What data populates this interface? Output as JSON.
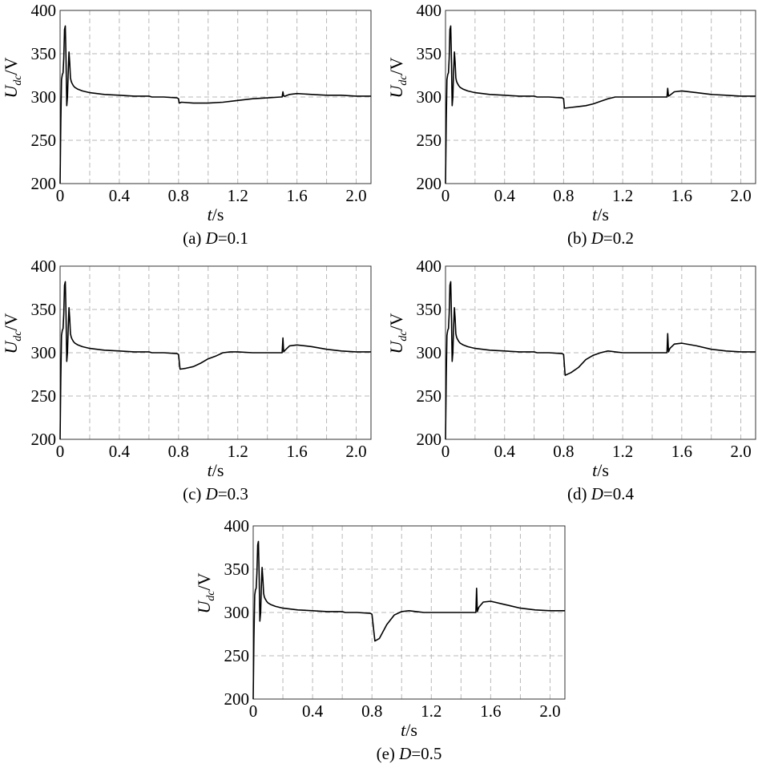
{
  "chart_data": [
    {
      "type": "line",
      "caption": {
        "prefix": "(a) ",
        "var": "D",
        "suffix": "=0.1"
      },
      "xlabel": {
        "var": "t",
        "unit": "/s"
      },
      "ylabel": {
        "base": "U",
        "sub": "dc",
        "unit": "/V"
      },
      "xlim": [
        0,
        2.1
      ],
      "ylim": [
        200,
        400
      ],
      "xticks": [
        "0",
        "0.4",
        "0.8",
        "1.2",
        "1.6",
        "2.0"
      ],
      "yticks": [
        "200",
        "250",
        "300",
        "350",
        "400"
      ],
      "grid": true,
      "series": [
        {
          "x": [
            0,
            0.005,
            0.01,
            0.015,
            0.02,
            0.025,
            0.03,
            0.035,
            0.04,
            0.045,
            0.05,
            0.055,
            0.06,
            0.065,
            0.07,
            0.075,
            0.08,
            0.09,
            0.1,
            0.12,
            0.15,
            0.2,
            0.3,
            0.4,
            0.5,
            0.6,
            0.62,
            0.7,
            0.79,
            0.8,
            0.805,
            0.82,
            0.9,
            1.0,
            1.1,
            1.2,
            1.3,
            1.4,
            1.49,
            1.5,
            1.505,
            1.51,
            1.52,
            1.55,
            1.6,
            1.7,
            1.8,
            1.9,
            2.0,
            2.1
          ],
          "y": [
            200,
            270,
            320,
            326,
            328,
            345,
            378,
            382,
            345,
            290,
            300,
            330,
            352,
            340,
            322,
            318,
            316,
            313,
            311,
            309,
            307,
            305,
            303,
            302,
            301,
            301,
            300,
            300,
            299,
            298,
            293,
            294,
            293,
            293,
            294,
            296,
            298,
            299,
            300,
            300,
            306,
            301,
            301,
            303,
            304,
            303,
            302,
            302,
            301,
            301
          ]
        }
      ]
    },
    {
      "type": "line",
      "caption": {
        "prefix": "(b) ",
        "var": "D",
        "suffix": "=0.2"
      },
      "xlabel": {
        "var": "t",
        "unit": "/s"
      },
      "ylabel": {
        "base": "U",
        "sub": "dc",
        "unit": "/V"
      },
      "xlim": [
        0,
        2.1
      ],
      "ylim": [
        200,
        400
      ],
      "xticks": [
        "0",
        "0.4",
        "0.8",
        "1.2",
        "1.6",
        "2.0"
      ],
      "yticks": [
        "200",
        "250",
        "300",
        "350",
        "400"
      ],
      "grid": true,
      "series": [
        {
          "x": [
            0,
            0.005,
            0.01,
            0.015,
            0.02,
            0.025,
            0.03,
            0.035,
            0.04,
            0.045,
            0.05,
            0.055,
            0.06,
            0.065,
            0.07,
            0.075,
            0.08,
            0.09,
            0.1,
            0.12,
            0.15,
            0.2,
            0.3,
            0.4,
            0.5,
            0.6,
            0.62,
            0.7,
            0.79,
            0.8,
            0.805,
            0.85,
            0.9,
            0.95,
            1.0,
            1.05,
            1.1,
            1.15,
            1.2,
            1.3,
            1.4,
            1.49,
            1.5,
            1.505,
            1.51,
            1.52,
            1.55,
            1.6,
            1.7,
            1.8,
            1.9,
            2.0,
            2.1
          ],
          "y": [
            200,
            270,
            320,
            326,
            328,
            345,
            378,
            382,
            345,
            290,
            300,
            330,
            352,
            340,
            322,
            318,
            316,
            313,
            311,
            309,
            307,
            305,
            303,
            302,
            301,
            301,
            300,
            300,
            299,
            298,
            287,
            288,
            289,
            290,
            292,
            295,
            298,
            300,
            300,
            300,
            300,
            300,
            300,
            310,
            301,
            302,
            306,
            307,
            305,
            303,
            302,
            301,
            301
          ]
        }
      ]
    },
    {
      "type": "line",
      "caption": {
        "prefix": "(c) ",
        "var": "D",
        "suffix": "=0.3"
      },
      "xlabel": {
        "var": "t",
        "unit": "/s"
      },
      "ylabel": {
        "base": "U",
        "sub": "dc",
        "unit": "/V"
      },
      "xlim": [
        0,
        2.1
      ],
      "ylim": [
        200,
        400
      ],
      "xticks": [
        "0",
        "0.4",
        "0.8",
        "1.2",
        "1.6",
        "2.0"
      ],
      "yticks": [
        "200",
        "250",
        "300",
        "350",
        "400"
      ],
      "grid": true,
      "series": [
        {
          "x": [
            0,
            0.005,
            0.01,
            0.015,
            0.02,
            0.025,
            0.03,
            0.035,
            0.04,
            0.045,
            0.05,
            0.055,
            0.06,
            0.065,
            0.07,
            0.075,
            0.08,
            0.09,
            0.1,
            0.12,
            0.15,
            0.2,
            0.3,
            0.4,
            0.5,
            0.6,
            0.62,
            0.7,
            0.79,
            0.8,
            0.81,
            0.85,
            0.9,
            0.95,
            1.0,
            1.05,
            1.1,
            1.15,
            1.2,
            1.3,
            1.4,
            1.49,
            1.5,
            1.505,
            1.51,
            1.52,
            1.55,
            1.6,
            1.7,
            1.8,
            1.9,
            2.0,
            2.1
          ],
          "y": [
            200,
            270,
            320,
            326,
            328,
            345,
            378,
            382,
            345,
            290,
            300,
            330,
            352,
            340,
            322,
            318,
            316,
            313,
            311,
            309,
            307,
            305,
            303,
            302,
            301,
            301,
            300,
            300,
            299,
            298,
            281,
            282,
            284,
            288,
            293,
            296,
            300,
            301,
            301,
            300,
            300,
            300,
            300,
            317,
            301,
            303,
            308,
            309,
            307,
            304,
            302,
            301,
            301
          ]
        }
      ]
    },
    {
      "type": "line",
      "caption": {
        "prefix": "(d) ",
        "var": "D",
        "suffix": "=0.4"
      },
      "xlabel": {
        "var": "t",
        "unit": "/s"
      },
      "ylabel": {
        "base": "U",
        "sub": "dc",
        "unit": "/V"
      },
      "xlim": [
        0,
        2.1
      ],
      "ylim": [
        200,
        400
      ],
      "xticks": [
        "0",
        "0.4",
        "0.8",
        "1.2",
        "1.6",
        "2.0"
      ],
      "yticks": [
        "200",
        "250",
        "300",
        "350",
        "400"
      ],
      "grid": true,
      "series": [
        {
          "x": [
            0,
            0.005,
            0.01,
            0.015,
            0.02,
            0.025,
            0.03,
            0.035,
            0.04,
            0.045,
            0.05,
            0.055,
            0.06,
            0.065,
            0.07,
            0.075,
            0.08,
            0.09,
            0.1,
            0.12,
            0.15,
            0.2,
            0.3,
            0.4,
            0.5,
            0.6,
            0.62,
            0.7,
            0.79,
            0.8,
            0.81,
            0.85,
            0.9,
            0.95,
            1.0,
            1.05,
            1.1,
            1.15,
            1.2,
            1.3,
            1.4,
            1.49,
            1.5,
            1.505,
            1.51,
            1.52,
            1.55,
            1.6,
            1.7,
            1.8,
            1.9,
            2.0,
            2.1
          ],
          "y": [
            200,
            270,
            320,
            326,
            328,
            345,
            378,
            382,
            345,
            290,
            300,
            330,
            352,
            340,
            322,
            318,
            316,
            313,
            311,
            309,
            307,
            305,
            303,
            302,
            301,
            301,
            300,
            300,
            299,
            298,
            274,
            277,
            283,
            292,
            297,
            300,
            302,
            301,
            300,
            300,
            300,
            300,
            300,
            322,
            301,
            305,
            310,
            311,
            308,
            304,
            302,
            301,
            301
          ]
        }
      ]
    },
    {
      "type": "line",
      "caption": {
        "prefix": "(e) ",
        "var": "D",
        "suffix": "=0.5"
      },
      "xlabel": {
        "var": "t",
        "unit": "/s"
      },
      "ylabel": {
        "base": "U",
        "sub": "dc",
        "unit": "/V"
      },
      "xlim": [
        0,
        2.1
      ],
      "ylim": [
        200,
        400
      ],
      "xticks": [
        "0",
        "0.4",
        "0.8",
        "1.2",
        "1.6",
        "2.0"
      ],
      "yticks": [
        "200",
        "250",
        "300",
        "350",
        "400"
      ],
      "grid": true,
      "series": [
        {
          "x": [
            0,
            0.005,
            0.01,
            0.015,
            0.02,
            0.025,
            0.03,
            0.035,
            0.04,
            0.045,
            0.05,
            0.055,
            0.06,
            0.065,
            0.07,
            0.075,
            0.08,
            0.09,
            0.1,
            0.12,
            0.15,
            0.2,
            0.3,
            0.4,
            0.5,
            0.6,
            0.62,
            0.7,
            0.79,
            0.8,
            0.82,
            0.85,
            0.9,
            0.95,
            1.0,
            1.05,
            1.1,
            1.15,
            1.2,
            1.3,
            1.4,
            1.49,
            1.5,
            1.505,
            1.51,
            1.52,
            1.55,
            1.6,
            1.7,
            1.8,
            1.9,
            2.0,
            2.1
          ],
          "y": [
            200,
            270,
            320,
            326,
            328,
            345,
            378,
            382,
            345,
            290,
            300,
            330,
            352,
            340,
            322,
            318,
            316,
            313,
            311,
            309,
            307,
            305,
            303,
            302,
            301,
            301,
            300,
            300,
            299,
            298,
            267,
            270,
            286,
            297,
            301,
            302,
            301,
            300,
            300,
            300,
            300,
            300,
            300,
            328,
            301,
            306,
            312,
            313,
            309,
            305,
            303,
            302,
            302
          ]
        }
      ]
    }
  ]
}
